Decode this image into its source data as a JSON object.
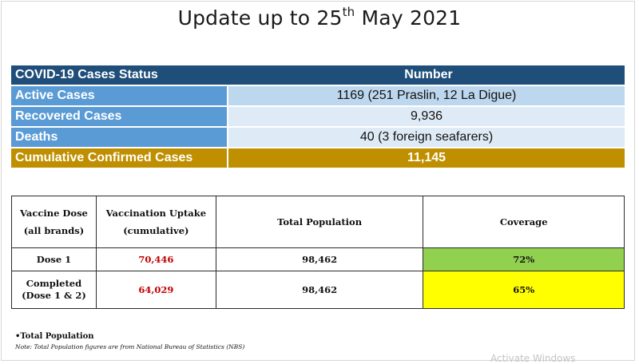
{
  "title": {
    "main": "Update up to 25",
    "sup": "th",
    "rest": " May 2021"
  },
  "status_table": {
    "headers": [
      "COVID-19 Cases Status",
      "Number"
    ],
    "rows": [
      {
        "label": "Active Cases",
        "value": "1169 (251 Praslin, 12 La Digue)"
      },
      {
        "label": "Recovered Cases",
        "value": "9,936"
      },
      {
        "label": "Deaths",
        "value": "40 (3 foreign seafarers)"
      },
      {
        "label": "Cumulative Confirmed Cases",
        "value": "11,145"
      }
    ],
    "colors": {
      "header": "#1e4e79",
      "label": "#5b9bd5",
      "value_light": "#deebf7",
      "value_mid": "#bdd7ee",
      "cumulative": "#bf8f00"
    }
  },
  "vaccine_table": {
    "headers": {
      "dose_line1": "Vaccine Dose",
      "dose_line2": "(all brands)",
      "uptake_line1": "Vaccination Uptake",
      "uptake_line2": "(cumulative)",
      "population": "Total Population",
      "coverage": "Coverage"
    },
    "rows": [
      {
        "dose_line1": "Dose 1",
        "dose_line2": "",
        "uptake": "70,446",
        "population": "98,462",
        "coverage": "72%",
        "coverage_color": "#92d050"
      },
      {
        "dose_line1": "Completed",
        "dose_line2": "(Dose 1 & 2)",
        "uptake": "64,029",
        "population": "98,462",
        "coverage": "65%",
        "coverage_color": "#ffff00"
      }
    ]
  },
  "notes": {
    "title": "•Total Population",
    "text": "Note: Total Population figures are from National Bureau of Statistics (NBS)"
  },
  "watermark": "Activate Windows"
}
